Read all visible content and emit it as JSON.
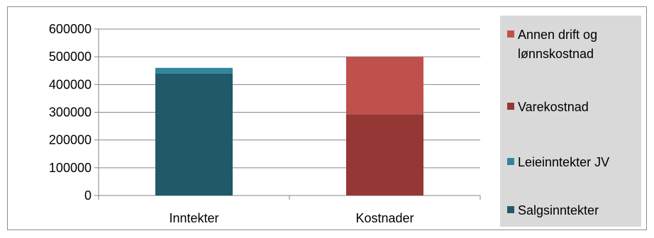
{
  "chart_data": {
    "type": "bar",
    "stacked": true,
    "categories": [
      "Inntekter",
      "Kostnader"
    ],
    "series": [
      {
        "name": "Salgsinntekter",
        "values": [
          440000,
          0
        ],
        "color": "#215968"
      },
      {
        "name": "Leieinntekter JV",
        "values": [
          20000,
          0
        ],
        "color": "#31859c"
      },
      {
        "name": "Varekostnad",
        "values": [
          0,
          293000
        ],
        "color": "#953735"
      },
      {
        "name": "Annen drift og lønnskostnad",
        "values": [
          0,
          207000
        ],
        "color": "#c0504d"
      }
    ],
    "ylim": [
      0,
      600000
    ],
    "yticks": [
      "0",
      "100000",
      "200000",
      "300000",
      "400000",
      "500000",
      "600000"
    ],
    "grid": true,
    "legend_position": "right",
    "legend_order": [
      "Annen drift og lønnskostnad",
      "Varekostnad",
      "Leieinntekter JV",
      "Salgsinntekter"
    ]
  }
}
